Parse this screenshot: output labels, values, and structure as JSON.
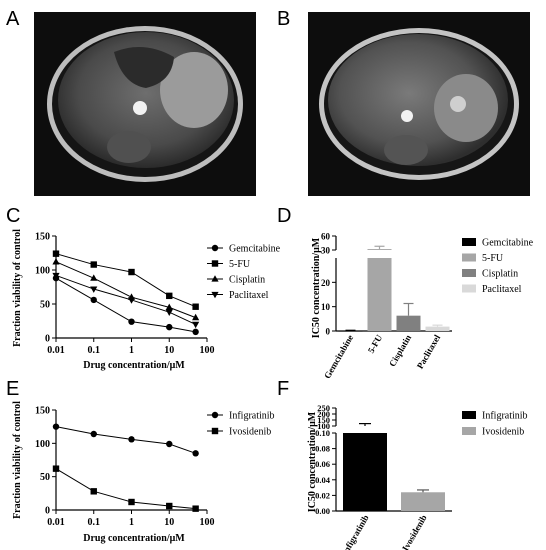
{
  "panels": {
    "A": "A",
    "B": "B",
    "C": "C",
    "D": "D",
    "E": "E",
    "F": "F"
  },
  "chart_data": [
    {
      "id": "C",
      "type": "line",
      "xscale": "log",
      "xlim": [
        0.01,
        100
      ],
      "ylim": [
        0,
        150
      ],
      "x": [
        0.01,
        0.1,
        1,
        10,
        50
      ],
      "xticks": [
        "0.01",
        "0.1",
        "1",
        "10",
        "100"
      ],
      "yticks": [
        "0",
        "50",
        "100",
        "150"
      ],
      "xlabel": "Drug concentration/μM",
      "ylabel": "Fraction viability of control",
      "legend_position": "right",
      "series": [
        {
          "name": "Gemcitabine",
          "marker": "circle",
          "values": [
            88,
            56,
            24,
            16,
            9
          ]
        },
        {
          "name": "5-FU",
          "marker": "square",
          "values": [
            124,
            108,
            97,
            62,
            46
          ]
        },
        {
          "name": "Cisplatin",
          "marker": "triangle-up",
          "values": [
            112,
            88,
            60,
            45,
            30
          ]
        },
        {
          "name": "Paclitaxel",
          "marker": "triangle-down",
          "values": [
            92,
            72,
            56,
            38,
            20
          ]
        }
      ]
    },
    {
      "id": "D",
      "type": "bar",
      "broken_axis": true,
      "categories": [
        "Gemcitabine",
        "5-FU",
        "Cisplatin",
        "Paclitaxel"
      ],
      "values": [
        0.1,
        32,
        6.3,
        1.8
      ],
      "errors": [
        0.2,
        6,
        5,
        0.6
      ],
      "colors": [
        "#000000",
        "#a6a6a6",
        "#808080",
        "#d9d9d9"
      ],
      "yticks": [
        "0",
        "10",
        "20",
        "30",
        "60"
      ],
      "ylabel": "IC50 concentration/μM",
      "legend_position": "right",
      "legend": [
        "Gemcitabine",
        "5-FU",
        "Cisplatin",
        "Paclitaxel"
      ]
    },
    {
      "id": "E",
      "type": "line",
      "xscale": "log",
      "xlim": [
        0.01,
        100
      ],
      "ylim": [
        0,
        150
      ],
      "x": [
        0.01,
        0.1,
        1,
        10,
        50
      ],
      "xticks": [
        "0.01",
        "0.1",
        "1",
        "10",
        "100"
      ],
      "yticks": [
        "0",
        "50",
        "100",
        "150"
      ],
      "xlabel": "Drug concentration/μM",
      "ylabel": "Fraction viability of control",
      "legend_position": "right",
      "series": [
        {
          "name": "Infigratinib",
          "marker": "circle",
          "values": [
            125,
            114,
            106,
            99,
            85
          ]
        },
        {
          "name": "Ivosidenib",
          "marker": "square",
          "values": [
            62,
            28,
            12,
            6,
            2
          ]
        }
      ]
    },
    {
      "id": "F",
      "type": "bar",
      "broken_axis": true,
      "categories": [
        "Infigratinib",
        "Ivosidenib"
      ],
      "values": [
        100,
        0.024
      ],
      "errors": [
        20,
        0.003
      ],
      "colors": [
        "#000000",
        "#a6a6a6"
      ],
      "yticks": [
        "0.00",
        "0.02",
        "0.04",
        "0.06",
        "0.08",
        "0.10",
        "100",
        "150",
        "200",
        "250"
      ],
      "ylabel": "IC50 concentration/μM",
      "legend_position": "right",
      "legend": [
        "Infigratinib",
        "Ivosidenib"
      ]
    }
  ]
}
